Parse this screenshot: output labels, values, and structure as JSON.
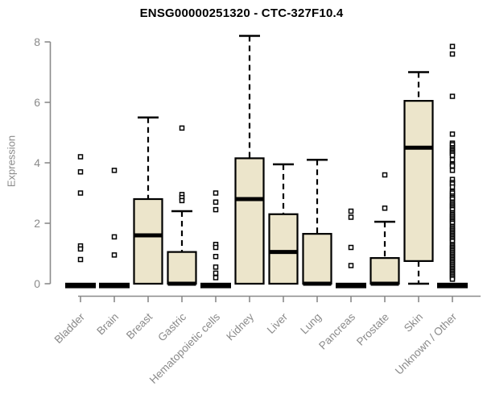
{
  "chart_data": {
    "type": "boxplot",
    "title": "ENSG00000251320 - CTC-327F10.4",
    "ylabel": "Expression",
    "xlabel": "",
    "ylim": [
      0,
      8.3
    ],
    "yticks": [
      0,
      2,
      4,
      6,
      8
    ],
    "grid": false,
    "legend": "none",
    "x_label_rotation": -45,
    "categories": [
      "Bladder",
      "Brain",
      "Breast",
      "Gastric",
      "Hematopoietic cells",
      "Kidney",
      "Liver",
      "Lung",
      "Pancreas",
      "Prostate",
      "Skin",
      "Unknown / Other"
    ],
    "boxes": [
      {
        "category": "Bladder",
        "q1": 0,
        "median": 0,
        "q3": 0,
        "whisker_low": 0,
        "whisker_high": 0,
        "outliers": [
          4.2,
          3.7,
          3.0,
          1.25,
          1.15,
          0.8
        ]
      },
      {
        "category": "Brain",
        "q1": 0,
        "median": 0,
        "q3": 0,
        "whisker_low": 0,
        "whisker_high": 0,
        "outliers": [
          3.75,
          1.55,
          0.95
        ]
      },
      {
        "category": "Breast",
        "q1": 0,
        "median": 1.6,
        "q3": 2.8,
        "whisker_low": 0,
        "whisker_high": 5.5,
        "outliers": []
      },
      {
        "category": "Gastric",
        "q1": 0,
        "median": 0,
        "q3": 1.05,
        "whisker_low": 0,
        "whisker_high": 2.4,
        "outliers": [
          5.15,
          2.95,
          2.85,
          2.75
        ]
      },
      {
        "category": "Hematopoietic cells",
        "q1": 0,
        "median": 0,
        "q3": 0,
        "whisker_low": 0,
        "whisker_high": 0,
        "outliers": [
          3.0,
          2.7,
          2.45,
          1.3,
          1.2,
          0.9,
          0.55,
          0.35,
          0.2
        ]
      },
      {
        "category": "Kidney",
        "q1": 0,
        "median": 2.8,
        "q3": 4.15,
        "whisker_low": 0,
        "whisker_high": 8.2,
        "outliers": []
      },
      {
        "category": "Liver",
        "q1": 0,
        "median": 1.05,
        "q3": 2.3,
        "whisker_low": 0,
        "whisker_high": 3.95,
        "outliers": []
      },
      {
        "category": "Lung",
        "q1": 0,
        "median": 0,
        "q3": 1.65,
        "whisker_low": 0,
        "whisker_high": 4.1,
        "outliers": []
      },
      {
        "category": "Pancreas",
        "q1": 0,
        "median": 0,
        "q3": 0,
        "whisker_low": 0,
        "whisker_high": 0,
        "outliers": [
          2.4,
          2.2,
          1.2,
          0.6
        ]
      },
      {
        "category": "Prostate",
        "q1": 0,
        "median": 0,
        "q3": 0.85,
        "whisker_low": 0,
        "whisker_high": 2.05,
        "outliers": [
          3.6,
          2.5
        ]
      },
      {
        "category": "Skin",
        "q1": 0.75,
        "median": 4.5,
        "q3": 6.05,
        "whisker_low": 0,
        "whisker_high": 7.0,
        "outliers": []
      },
      {
        "category": "Unknown / Other",
        "q1": 0,
        "median": 0,
        "q3": 0,
        "whisker_low": 0,
        "whisker_high": 0,
        "outliers": [
          7.85,
          7.6,
          6.2,
          4.95,
          4.65,
          4.6,
          4.5,
          4.45,
          4.4,
          4.35,
          4.3,
          4.25,
          4.1,
          3.95,
          3.9,
          3.75,
          3.45,
          3.35,
          3.3,
          3.2,
          3.05,
          3.0,
          2.9,
          2.85,
          2.8,
          2.7,
          2.65,
          2.6,
          2.55,
          2.5,
          2.45,
          2.35,
          2.3,
          2.25,
          2.2,
          2.15,
          2.1,
          2.05,
          2.0,
          1.9,
          1.85,
          1.8,
          1.75,
          1.7,
          1.65,
          1.6,
          1.55,
          1.5,
          1.45,
          1.4,
          1.3,
          1.25,
          1.2,
          1.15,
          1.1,
          1.05,
          1.0,
          0.95,
          0.9,
          0.85,
          0.8,
          0.75,
          0.7,
          0.65,
          0.6,
          0.55,
          0.5,
          0.45,
          0.4,
          0.35,
          0.3,
          0.25,
          0.2,
          0.15
        ]
      }
    ],
    "colors": {
      "box_fill": "#ece5cb",
      "box_border": "#000000",
      "median": "#000000",
      "whisker": "#000000",
      "outlier_stroke": "#000000",
      "outlier_fill": "#ffffff",
      "axis": "#8a8a8a",
      "tick_label": "#8a8a8a",
      "title": "#000000",
      "background": "#ffffff"
    }
  }
}
